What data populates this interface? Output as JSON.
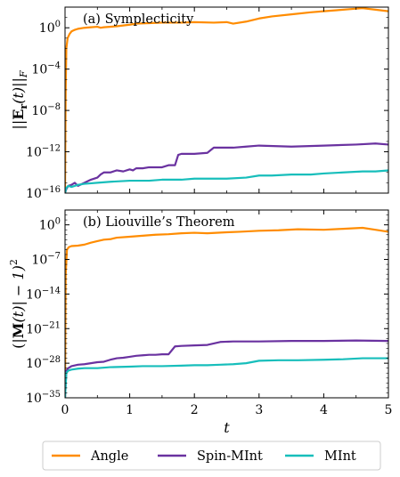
{
  "chart_data": [
    {
      "type": "line",
      "title": "(a) Symplecticity",
      "ylabel": "||E_r(t)||_F",
      "ylabel_parts": {
        "pre": "||",
        "bold": "E",
        "sub": "r",
        "mid": "(t)||",
        "sub2": "F"
      },
      "yscale": "log",
      "xlim": [
        0,
        5
      ],
      "ylim_exp": [
        -16,
        2
      ],
      "yticks_exp": [
        -16,
        -12,
        -8,
        -4,
        0
      ],
      "ytick_labels": [
        [
          "10",
          "−16"
        ],
        [
          "10",
          "−12"
        ],
        [
          "10",
          "−8"
        ],
        [
          "10",
          "−4"
        ],
        [
          "10",
          "0"
        ]
      ],
      "grid": false,
      "series": [
        {
          "name": "Angle",
          "color": "#ff8c00",
          "x": [
            0,
            0.01,
            0.02,
            0.04,
            0.07,
            0.1,
            0.15,
            0.2,
            0.3,
            0.4,
            0.5,
            0.55,
            0.6,
            0.8,
            1.0,
            1.1,
            1.3,
            1.5,
            1.8,
            2.0,
            2.3,
            2.5,
            2.6,
            2.8,
            3.0,
            3.2,
            3.5,
            3.8,
            4.0,
            4.2,
            4.4,
            4.6,
            4.8,
            5.0
          ],
          "y_log10": [
            -16,
            -6,
            -2,
            -1,
            -0.6,
            -0.35,
            -0.2,
            -0.1,
            0.0,
            0.05,
            0.1,
            0.0,
            0.05,
            0.15,
            0.3,
            0.4,
            0.45,
            0.5,
            0.5,
            0.55,
            0.5,
            0.55,
            0.4,
            0.6,
            0.9,
            1.1,
            1.3,
            1.5,
            1.6,
            1.7,
            1.8,
            1.9,
            1.75,
            1.6
          ]
        },
        {
          "name": "Spin-MInt",
          "color": "#6a32a0",
          "x": [
            0,
            0.02,
            0.05,
            0.1,
            0.15,
            0.2,
            0.3,
            0.4,
            0.5,
            0.55,
            0.6,
            0.7,
            0.8,
            0.9,
            1.0,
            1.05,
            1.1,
            1.2,
            1.3,
            1.4,
            1.5,
            1.6,
            1.7,
            1.75,
            1.8,
            2.0,
            2.2,
            2.3,
            2.4,
            2.6,
            2.8,
            3.0,
            3.5,
            4.0,
            4.5,
            4.8,
            5.0
          ],
          "y_log10": [
            -16,
            -15.6,
            -15.3,
            -15.2,
            -15.0,
            -15.3,
            -15.0,
            -14.7,
            -14.5,
            -14.2,
            -14.0,
            -14.0,
            -13.8,
            -13.9,
            -13.7,
            -13.8,
            -13.6,
            -13.6,
            -13.5,
            -13.5,
            -13.5,
            -13.3,
            -13.3,
            -12.3,
            -12.2,
            -12.2,
            -12.1,
            -11.6,
            -11.6,
            -11.6,
            -11.5,
            -11.4,
            -11.5,
            -11.4,
            -11.3,
            -11.2,
            -11.3
          ]
        },
        {
          "name": "MInt",
          "color": "#17bebb",
          "x": [
            0,
            0.02,
            0.05,
            0.1,
            0.2,
            0.3,
            0.5,
            0.7,
            1.0,
            1.3,
            1.5,
            1.8,
            2.0,
            2.2,
            2.5,
            2.8,
            3.0,
            3.2,
            3.5,
            3.8,
            4.0,
            4.3,
            4.6,
            4.8,
            5.0
          ],
          "y_log10": [
            -16,
            -15.5,
            -15.3,
            -15.4,
            -15.2,
            -15.1,
            -15.0,
            -14.9,
            -14.8,
            -14.8,
            -14.7,
            -14.7,
            -14.6,
            -14.6,
            -14.6,
            -14.5,
            -14.3,
            -14.3,
            -14.2,
            -14.2,
            -14.1,
            -14.0,
            -13.9,
            -13.9,
            -13.8
          ]
        }
      ]
    },
    {
      "type": "line",
      "title": "(b) Liouville’s Theorem",
      "ylabel": "(|M(t)| − 1)^2",
      "ylabel_parts": {
        "pre": "(|",
        "bold": "M",
        "mid": "(t)| − 1)",
        "sup": "2"
      },
      "xlabel": "t",
      "yscale": "log",
      "xlim": [
        0,
        5
      ],
      "ylim_exp": [
        -35,
        3
      ],
      "xticks": [
        0,
        1,
        2,
        3,
        4,
        5
      ],
      "xtick_labels": [
        "0",
        "1",
        "2",
        "3",
        "4",
        "5"
      ],
      "yticks_exp": [
        -35,
        -28,
        -21,
        -14,
        -7,
        0
      ],
      "ytick_labels": [
        [
          "10",
          "−35"
        ],
        [
          "10",
          "−28"
        ],
        [
          "10",
          "−21"
        ],
        [
          "10",
          "−14"
        ],
        [
          "10",
          "−7"
        ],
        [
          "10",
          "0"
        ]
      ],
      "grid": false,
      "series": [
        {
          "name": "Angle",
          "color": "#ff8c00",
          "x": [
            0,
            0.01,
            0.03,
            0.06,
            0.1,
            0.2,
            0.3,
            0.4,
            0.5,
            0.6,
            0.7,
            0.8,
            1.0,
            1.2,
            1.4,
            1.6,
            1.8,
            2.0,
            2.2,
            2.5,
            2.7,
            3.0,
            3.3,
            3.6,
            4.0,
            4.3,
            4.6,
            4.8,
            5.0
          ],
          "y_log10": [
            -35,
            -10,
            -5,
            -4.5,
            -4.3,
            -4.2,
            -4.0,
            -3.6,
            -3.3,
            -3.0,
            -2.9,
            -2.6,
            -2.4,
            -2.2,
            -2.0,
            -1.9,
            -1.7,
            -1.6,
            -1.7,
            -1.5,
            -1.4,
            -1.2,
            -1.1,
            -0.9,
            -1.0,
            -0.8,
            -0.6,
            -1.0,
            -1.4
          ]
        },
        {
          "name": "Spin-MInt",
          "color": "#6a32a0",
          "x": [
            0,
            0.02,
            0.05,
            0.1,
            0.2,
            0.3,
            0.4,
            0.5,
            0.6,
            0.7,
            0.8,
            0.9,
            1.0,
            1.1,
            1.2,
            1.3,
            1.4,
            1.5,
            1.6,
            1.7,
            1.8,
            2.0,
            2.2,
            2.4,
            2.6,
            2.8,
            3.0,
            3.5,
            4.0,
            4.5,
            5.0
          ],
          "y_log10": [
            -35,
            -29.5,
            -29.0,
            -28.6,
            -28.3,
            -28.2,
            -28.0,
            -27.8,
            -27.7,
            -27.3,
            -27.0,
            -26.9,
            -26.7,
            -26.5,
            -26.4,
            -26.3,
            -26.3,
            -26.2,
            -26.2,
            -24.6,
            -24.5,
            -24.4,
            -24.3,
            -23.7,
            -23.6,
            -23.6,
            -23.6,
            -23.5,
            -23.5,
            -23.4,
            -23.5
          ]
        },
        {
          "name": "MInt",
          "color": "#17bebb",
          "x": [
            0,
            0.02,
            0.05,
            0.1,
            0.2,
            0.3,
            0.5,
            0.7,
            1.0,
            1.2,
            1.5,
            1.8,
            2.0,
            2.2,
            2.4,
            2.6,
            2.8,
            3.0,
            3.3,
            3.6,
            4.0,
            4.3,
            4.6,
            5.0
          ],
          "y_log10": [
            -35,
            -30.0,
            -29.5,
            -29.3,
            -29.1,
            -29.0,
            -29.0,
            -28.8,
            -28.7,
            -28.6,
            -28.6,
            -28.5,
            -28.4,
            -28.4,
            -28.3,
            -28.2,
            -28.0,
            -27.5,
            -27.4,
            -27.4,
            -27.3,
            -27.2,
            -27.0,
            -27.0
          ]
        }
      ]
    }
  ],
  "legend": {
    "entries": [
      {
        "name": "Angle",
        "color": "#ff8c00"
      },
      {
        "name": "Spin-MInt",
        "color": "#6a32a0"
      },
      {
        "name": "MInt",
        "color": "#17bebb"
      }
    ]
  }
}
